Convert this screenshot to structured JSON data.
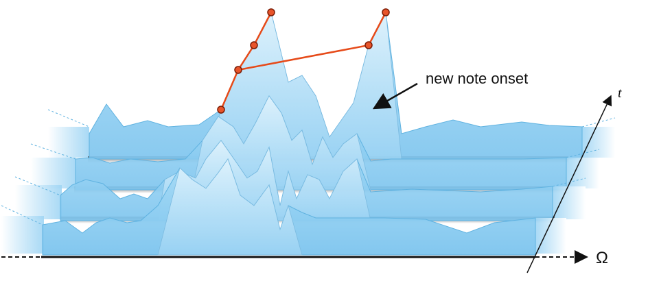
{
  "labels": {
    "onset": "new note onset",
    "time_axis": "t",
    "frequency_axis": "Ω"
  },
  "colors": {
    "slab": "#8fd0f2",
    "slab_edge": "#5fb2e0",
    "spike": "#bfe6fa",
    "trace": "#e64a19",
    "marker_fill": "#e8542a",
    "axis": "#111111"
  }
}
